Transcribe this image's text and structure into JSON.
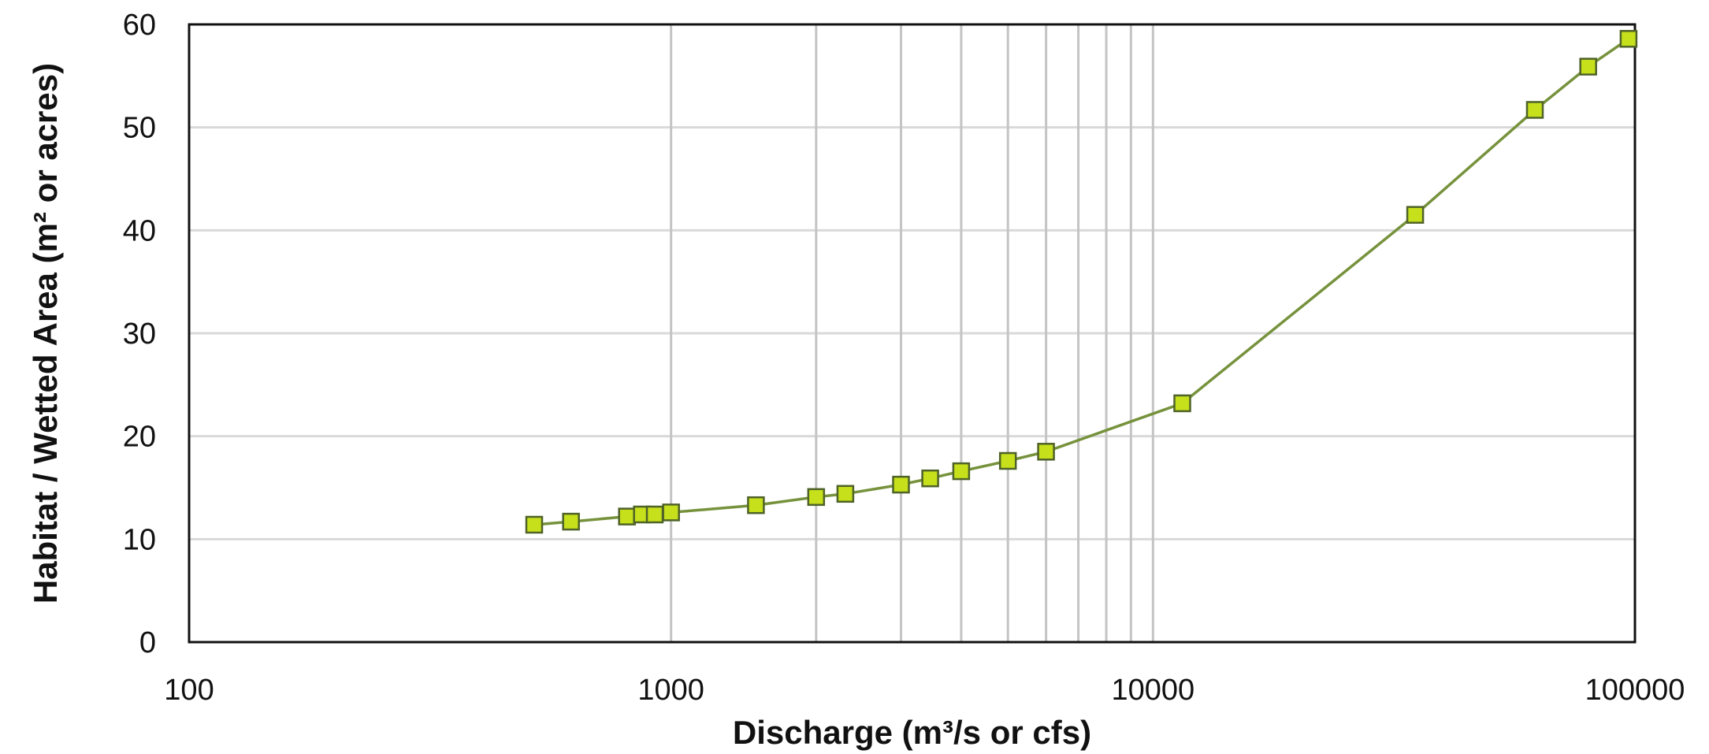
{
  "chart_data": {
    "type": "line",
    "xlabel": "Discharge (m³/s or cfs)",
    "ylabel": "Habitat / Wetted Area (m² or acres)",
    "x_scale": "log",
    "xlim": [
      100,
      100000
    ],
    "ylim": [
      0,
      60
    ],
    "x_ticks": [
      100,
      1000,
      10000,
      100000
    ],
    "x_tick_labels": [
      "100",
      "1000",
      "10000",
      "100000"
    ],
    "y_ticks": [
      0,
      10,
      20,
      30,
      40,
      50,
      60
    ],
    "y_tick_labels": [
      "0",
      "10",
      "20",
      "30",
      "40",
      "50",
      "60"
    ],
    "vertical_gridlines_x": [
      1000,
      2000,
      3000,
      4000,
      5000,
      6000,
      7000,
      8000,
      9000,
      10000
    ],
    "horizontal_grid": true,
    "legend": "none",
    "series": [
      {
        "marker": "square",
        "line_color": "#76923c",
        "marker_fill": "#c6e01c",
        "marker_edge": "#4f6228",
        "x": [
          520,
          620,
          810,
          870,
          925,
          1000,
          1500,
          2000,
          2300,
          3000,
          3450,
          4000,
          5000,
          6000,
          11500,
          35000,
          62000,
          80000,
          97000
        ],
        "y": [
          11.4,
          11.7,
          12.2,
          12.4,
          12.4,
          12.6,
          13.3,
          14.1,
          14.4,
          15.3,
          15.9,
          16.6,
          17.6,
          18.5,
          23.2,
          41.5,
          51.7,
          55.9,
          58.6
        ]
      }
    ]
  }
}
